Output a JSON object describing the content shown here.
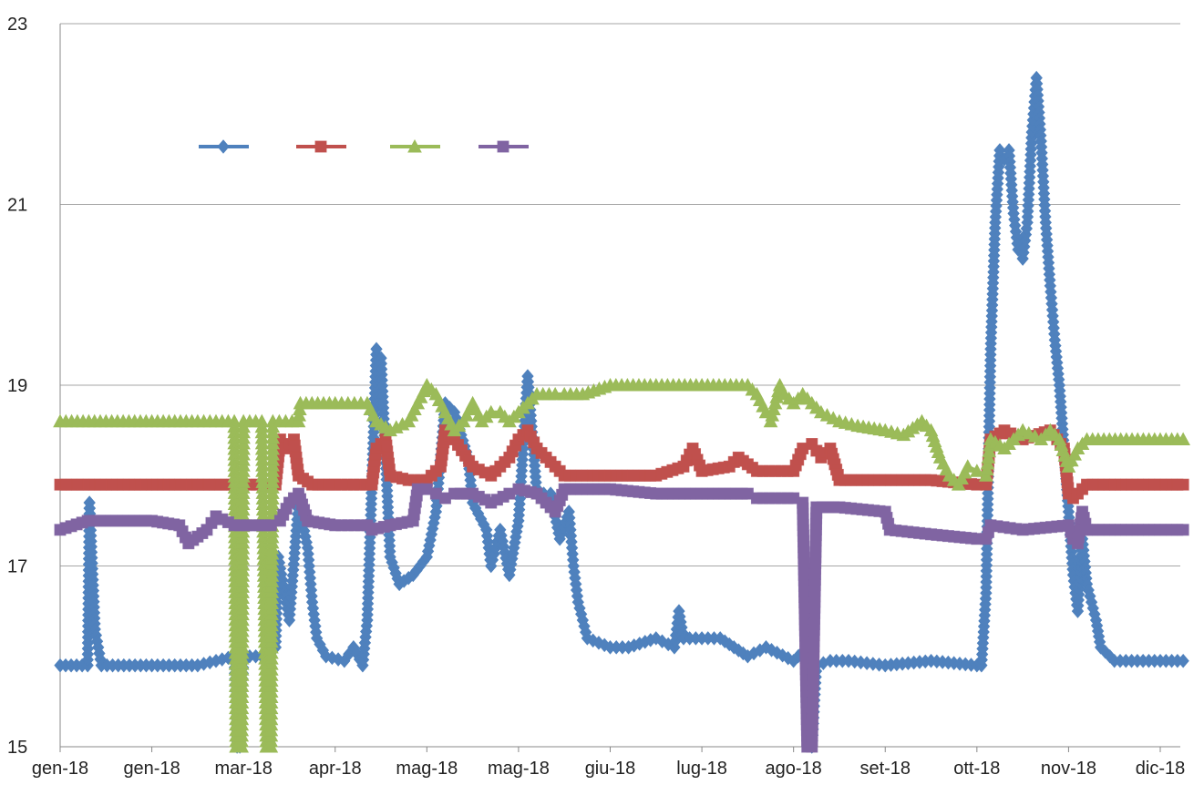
{
  "chart_data": {
    "type": "line",
    "title": "",
    "xlabel": "",
    "ylabel": "",
    "ylim": [
      15,
      23
    ],
    "yticks": [
      "15",
      "17",
      "19",
      "21",
      "23"
    ],
    "x_tick_labels": [
      "gen-18",
      "gen-18",
      "mar-18",
      "apr-18",
      "mag-18",
      "mag-18",
      "giu-18",
      "lug-18",
      "ago-18",
      "set-18",
      "ott-18",
      "nov-18",
      "dic-18"
    ],
    "x_range": [
      0,
      12
    ],
    "grid": "horizontal",
    "legend": {
      "placement": "top-left",
      "entries": [
        "",
        "",
        "",
        ""
      ]
    },
    "series": [
      {
        "color": "#4f81bd",
        "marker": "diamond",
        "points": [
          [
            0,
            15.9
          ],
          [
            0.3,
            15.9
          ],
          [
            0.32,
            17.7
          ],
          [
            0.38,
            16.3
          ],
          [
            0.45,
            15.9
          ],
          [
            1,
            15.9
          ],
          [
            1.5,
            15.9
          ],
          [
            1.9,
            16.0
          ],
          [
            1.93,
            15.0
          ],
          [
            1.96,
            15.0
          ],
          [
            2.0,
            16.0
          ],
          [
            2.2,
            16.0
          ],
          [
            2.35,
            16.1
          ],
          [
            2.38,
            17.1
          ],
          [
            2.5,
            16.4
          ],
          [
            2.6,
            17.7
          ],
          [
            2.7,
            17.2
          ],
          [
            2.75,
            16.6
          ],
          [
            2.8,
            16.2
          ],
          [
            2.9,
            16.0
          ],
          [
            3.1,
            15.95
          ],
          [
            3.2,
            16.1
          ],
          [
            3.3,
            15.9
          ],
          [
            3.35,
            16.4
          ],
          [
            3.45,
            19.4
          ],
          [
            3.5,
            19.3
          ],
          [
            3.6,
            17.1
          ],
          [
            3.7,
            16.8
          ],
          [
            3.85,
            16.9
          ],
          [
            4.0,
            17.1
          ],
          [
            4.1,
            17.6
          ],
          [
            4.2,
            18.8
          ],
          [
            4.3,
            18.7
          ],
          [
            4.45,
            18.2
          ],
          [
            4.5,
            17.7
          ],
          [
            4.65,
            17.4
          ],
          [
            4.7,
            17.0
          ],
          [
            4.8,
            17.4
          ],
          [
            4.9,
            16.9
          ],
          [
            5.0,
            17.5
          ],
          [
            5.1,
            19.1
          ],
          [
            5.2,
            17.8
          ],
          [
            5.35,
            17.8
          ],
          [
            5.45,
            17.3
          ],
          [
            5.55,
            17.6
          ],
          [
            5.6,
            17.0
          ],
          [
            5.65,
            16.6
          ],
          [
            5.75,
            16.2
          ],
          [
            6.0,
            16.1
          ],
          [
            6.2,
            16.1
          ],
          [
            6.5,
            16.2
          ],
          [
            6.7,
            16.1
          ],
          [
            6.75,
            16.5
          ],
          [
            6.8,
            16.2
          ],
          [
            7.0,
            16.2
          ],
          [
            7.2,
            16.2
          ],
          [
            7.5,
            16.0
          ],
          [
            7.7,
            16.1
          ],
          [
            8.0,
            15.95
          ],
          [
            8.15,
            16.1
          ],
          [
            8.2,
            15.0
          ],
          [
            8.25,
            15.9
          ],
          [
            8.4,
            15.95
          ],
          [
            8.6,
            15.95
          ],
          [
            9.0,
            15.9
          ],
          [
            9.5,
            15.95
          ],
          [
            10.0,
            15.9
          ],
          [
            10.05,
            15.9
          ],
          [
            10.1,
            16.7
          ],
          [
            10.15,
            19.4
          ],
          [
            10.2,
            20.8
          ],
          [
            10.25,
            21.6
          ],
          [
            10.3,
            21.5
          ],
          [
            10.35,
            21.6
          ],
          [
            10.4,
            20.9
          ],
          [
            10.45,
            20.5
          ],
          [
            10.5,
            20.4
          ],
          [
            10.55,
            20.8
          ],
          [
            10.6,
            21.8
          ],
          [
            10.65,
            22.4
          ],
          [
            10.7,
            21.7
          ],
          [
            10.75,
            20.8
          ],
          [
            10.8,
            20.1
          ],
          [
            10.85,
            19.5
          ],
          [
            10.9,
            19.0
          ],
          [
            11.0,
            17.6
          ],
          [
            11.05,
            16.9
          ],
          [
            11.1,
            16.5
          ],
          [
            11.15,
            17.3
          ],
          [
            11.2,
            16.8
          ],
          [
            11.3,
            16.4
          ],
          [
            11.35,
            16.1
          ],
          [
            11.5,
            15.95
          ],
          [
            12.0,
            15.95
          ],
          [
            12.25,
            15.95
          ]
        ]
      },
      {
        "color": "#c0504d",
        "marker": "square",
        "points": [
          [
            0,
            17.9
          ],
          [
            1,
            17.9
          ],
          [
            2,
            17.9
          ],
          [
            2.35,
            17.9
          ],
          [
            2.4,
            18.4
          ],
          [
            2.45,
            18.3
          ],
          [
            2.55,
            18.4
          ],
          [
            2.6,
            18.0
          ],
          [
            2.75,
            17.9
          ],
          [
            3.0,
            17.9
          ],
          [
            3.4,
            17.9
          ],
          [
            3.45,
            18.3
          ],
          [
            3.55,
            18.4
          ],
          [
            3.6,
            18.0
          ],
          [
            3.8,
            17.95
          ],
          [
            4.0,
            17.95
          ],
          [
            4.15,
            18.1
          ],
          [
            4.2,
            18.5
          ],
          [
            4.3,
            18.4
          ],
          [
            4.5,
            18.1
          ],
          [
            4.7,
            18.0
          ],
          [
            4.9,
            18.2
          ],
          [
            5.0,
            18.4
          ],
          [
            5.1,
            18.5
          ],
          [
            5.2,
            18.3
          ],
          [
            5.4,
            18.1
          ],
          [
            5.5,
            18.0
          ],
          [
            6.0,
            18.0
          ],
          [
            6.5,
            18.0
          ],
          [
            6.8,
            18.1
          ],
          [
            6.9,
            18.3
          ],
          [
            7.0,
            18.05
          ],
          [
            7.3,
            18.1
          ],
          [
            7.4,
            18.2
          ],
          [
            7.6,
            18.05
          ],
          [
            8.0,
            18.05
          ],
          [
            8.1,
            18.3
          ],
          [
            8.2,
            18.35
          ],
          [
            8.3,
            18.2
          ],
          [
            8.4,
            18.3
          ],
          [
            8.5,
            17.95
          ],
          [
            9.0,
            17.95
          ],
          [
            9.5,
            17.95
          ],
          [
            10.0,
            17.9
          ],
          [
            10.1,
            17.9
          ],
          [
            10.15,
            18.4
          ],
          [
            10.3,
            18.5
          ],
          [
            10.5,
            18.4
          ],
          [
            10.8,
            18.5
          ],
          [
            10.95,
            18.3
          ],
          [
            11.0,
            17.8
          ],
          [
            11.05,
            17.75
          ],
          [
            11.2,
            17.9
          ],
          [
            12.0,
            17.9
          ],
          [
            12.25,
            17.9
          ]
        ]
      },
      {
        "color": "#9bbb59",
        "marker": "triangle",
        "points": [
          [
            0,
            18.6
          ],
          [
            0.5,
            18.6
          ],
          [
            1,
            18.6
          ],
          [
            1.5,
            18.6
          ],
          [
            1.9,
            18.6
          ],
          [
            1.92,
            15.0
          ],
          [
            1.98,
            15.0
          ],
          [
            2.0,
            18.6
          ],
          [
            2.2,
            18.6
          ],
          [
            2.25,
            15.0
          ],
          [
            2.3,
            15.0
          ],
          [
            2.32,
            18.6
          ],
          [
            2.6,
            18.6
          ],
          [
            2.62,
            18.8
          ],
          [
            3.0,
            18.8
          ],
          [
            3.35,
            18.8
          ],
          [
            3.45,
            18.6
          ],
          [
            3.6,
            18.5
          ],
          [
            3.8,
            18.6
          ],
          [
            3.9,
            18.8
          ],
          [
            4.0,
            19.0
          ],
          [
            4.1,
            18.9
          ],
          [
            4.2,
            18.7
          ],
          [
            4.3,
            18.5
          ],
          [
            4.4,
            18.6
          ],
          [
            4.5,
            18.8
          ],
          [
            4.6,
            18.6
          ],
          [
            4.7,
            18.7
          ],
          [
            4.8,
            18.7
          ],
          [
            4.9,
            18.6
          ],
          [
            5.0,
            18.7
          ],
          [
            5.1,
            18.8
          ],
          [
            5.2,
            18.9
          ],
          [
            5.4,
            18.9
          ],
          [
            5.5,
            18.9
          ],
          [
            5.7,
            18.9
          ],
          [
            6.0,
            19.0
          ],
          [
            6.5,
            19.0
          ],
          [
            7.0,
            19.0
          ],
          [
            7.5,
            19.0
          ],
          [
            7.6,
            18.9
          ],
          [
            7.7,
            18.7
          ],
          [
            7.75,
            18.6
          ],
          [
            7.8,
            18.8
          ],
          [
            7.85,
            19.0
          ],
          [
            7.9,
            18.9
          ],
          [
            8.0,
            18.8
          ],
          [
            8.1,
            18.9
          ],
          [
            8.2,
            18.8
          ],
          [
            8.3,
            18.7
          ],
          [
            8.5,
            18.6
          ],
          [
            8.7,
            18.55
          ],
          [
            9.0,
            18.5
          ],
          [
            9.2,
            18.45
          ],
          [
            9.4,
            18.6
          ],
          [
            9.5,
            18.5
          ],
          [
            9.6,
            18.2
          ],
          [
            9.7,
            18.0
          ],
          [
            9.8,
            17.9
          ],
          [
            9.9,
            18.1
          ],
          [
            10.0,
            18.05
          ],
          [
            10.1,
            18.0
          ],
          [
            10.15,
            18.4
          ],
          [
            10.3,
            18.3
          ],
          [
            10.5,
            18.5
          ],
          [
            10.7,
            18.4
          ],
          [
            10.8,
            18.5
          ],
          [
            10.9,
            18.4
          ],
          [
            11.0,
            18.1
          ],
          [
            11.1,
            18.3
          ],
          [
            11.2,
            18.4
          ],
          [
            12.0,
            18.4
          ],
          [
            12.25,
            18.4
          ]
        ]
      },
      {
        "color": "#8064a2",
        "marker": "square",
        "points": [
          [
            0,
            17.4
          ],
          [
            0.3,
            17.5
          ],
          [
            1,
            17.5
          ],
          [
            1.3,
            17.45
          ],
          [
            1.4,
            17.25
          ],
          [
            1.6,
            17.4
          ],
          [
            1.7,
            17.55
          ],
          [
            1.9,
            17.45
          ],
          [
            2.3,
            17.45
          ],
          [
            2.4,
            17.5
          ],
          [
            2.5,
            17.7
          ],
          [
            2.6,
            17.8
          ],
          [
            2.7,
            17.5
          ],
          [
            3.0,
            17.45
          ],
          [
            3.35,
            17.45
          ],
          [
            3.4,
            17.4
          ],
          [
            3.6,
            17.45
          ],
          [
            3.85,
            17.5
          ],
          [
            3.9,
            17.85
          ],
          [
            4.0,
            17.85
          ],
          [
            4.1,
            17.8
          ],
          [
            4.2,
            17.75
          ],
          [
            4.3,
            17.8
          ],
          [
            4.5,
            17.8
          ],
          [
            4.7,
            17.7
          ],
          [
            4.9,
            17.8
          ],
          [
            5.0,
            17.85
          ],
          [
            5.2,
            17.8
          ],
          [
            5.3,
            17.7
          ],
          [
            5.4,
            17.6
          ],
          [
            5.5,
            17.85
          ],
          [
            6.0,
            17.85
          ],
          [
            6.5,
            17.8
          ],
          [
            7.0,
            17.8
          ],
          [
            7.5,
            17.8
          ],
          [
            7.6,
            17.75
          ],
          [
            8.0,
            17.75
          ],
          [
            8.1,
            17.7
          ],
          [
            8.15,
            15.0
          ],
          [
            8.2,
            15.0
          ],
          [
            8.25,
            17.65
          ],
          [
            8.5,
            17.65
          ],
          [
            9.0,
            17.6
          ],
          [
            9.05,
            17.4
          ],
          [
            9.5,
            17.35
          ],
          [
            10.0,
            17.3
          ],
          [
            10.1,
            17.3
          ],
          [
            10.15,
            17.45
          ],
          [
            10.5,
            17.4
          ],
          [
            11.0,
            17.45
          ],
          [
            11.05,
            17.3
          ],
          [
            11.1,
            17.25
          ],
          [
            11.15,
            17.6
          ],
          [
            11.2,
            17.4
          ],
          [
            12.0,
            17.4
          ],
          [
            12.25,
            17.4
          ]
        ]
      }
    ]
  }
}
